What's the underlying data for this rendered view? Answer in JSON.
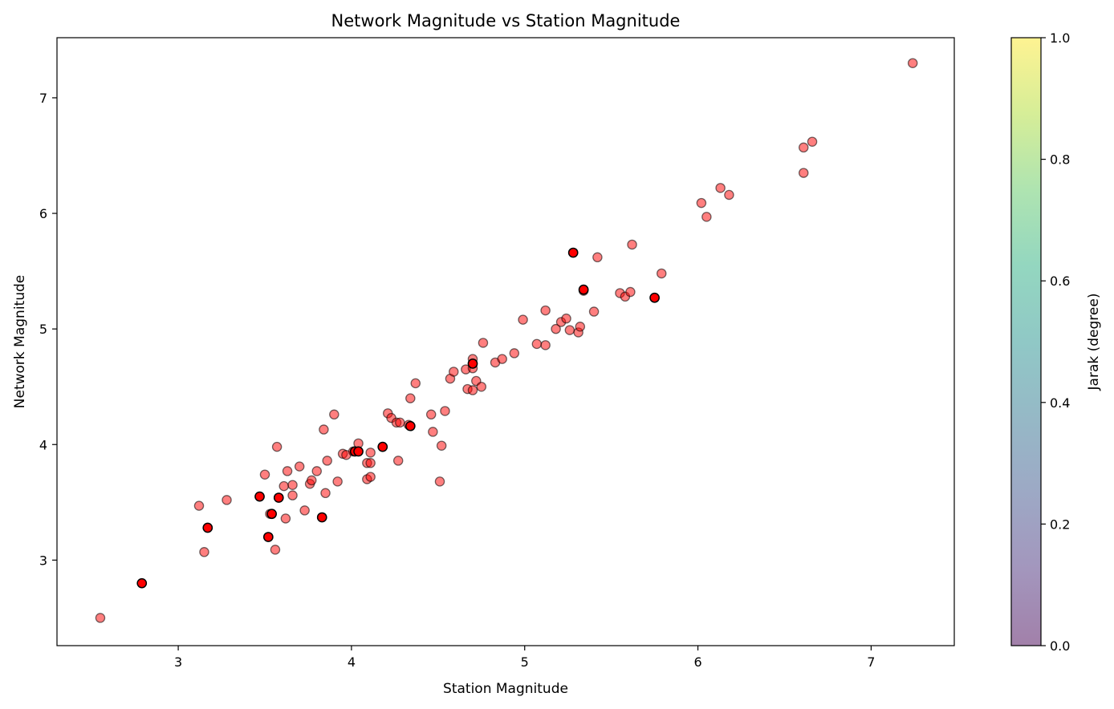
{
  "chart_data": {
    "type": "scatter",
    "title": "Network Magnitude vs Station Magnitude",
    "xlabel": "Station Magnitude",
    "ylabel": "Network Magnitude",
    "xlim": [
      2.3,
      7.48
    ],
    "ylim": [
      2.26,
      7.52
    ],
    "xticks": [
      3,
      4,
      5,
      6,
      7
    ],
    "yticks": [
      3,
      4,
      5,
      6,
      7
    ],
    "grid": false,
    "colors": {
      "point_fill": "#ff0000",
      "point_alpha": 0.5,
      "highlight_alpha": 1.0,
      "edge": "#000000"
    },
    "colorbar": {
      "label": "Jarak (degree)",
      "range": [
        0.0,
        1.0
      ],
      "ticks": [
        "0.0",
        "0.2",
        "0.4",
        "0.6",
        "0.8",
        "1.0"
      ],
      "colormap": "viridis",
      "alpha": 0.5
    },
    "points": [
      {
        "x": 2.55,
        "y": 2.5
      },
      {
        "x": 3.12,
        "y": 3.47
      },
      {
        "x": 3.15,
        "y": 3.07
      },
      {
        "x": 3.28,
        "y": 3.52
      },
      {
        "x": 3.5,
        "y": 3.74
      },
      {
        "x": 3.53,
        "y": 3.4
      },
      {
        "x": 3.56,
        "y": 3.09
      },
      {
        "x": 3.57,
        "y": 3.98
      },
      {
        "x": 3.61,
        "y": 3.64
      },
      {
        "x": 3.62,
        "y": 3.36
      },
      {
        "x": 3.63,
        "y": 3.77
      },
      {
        "x": 3.66,
        "y": 3.56
      },
      {
        "x": 3.66,
        "y": 3.65
      },
      {
        "x": 3.7,
        "y": 3.81
      },
      {
        "x": 3.73,
        "y": 3.43
      },
      {
        "x": 3.76,
        "y": 3.66
      },
      {
        "x": 3.77,
        "y": 3.69
      },
      {
        "x": 3.8,
        "y": 3.77
      },
      {
        "x": 3.84,
        "y": 4.13
      },
      {
        "x": 3.85,
        "y": 3.58
      },
      {
        "x": 3.86,
        "y": 3.86
      },
      {
        "x": 3.9,
        "y": 4.26
      },
      {
        "x": 3.92,
        "y": 3.68
      },
      {
        "x": 3.95,
        "y": 3.92
      },
      {
        "x": 3.97,
        "y": 3.91
      },
      {
        "x": 4.01,
        "y": 3.94
      },
      {
        "x": 4.04,
        "y": 4.01
      },
      {
        "x": 4.09,
        "y": 3.84
      },
      {
        "x": 4.09,
        "y": 3.7
      },
      {
        "x": 4.11,
        "y": 3.72
      },
      {
        "x": 4.11,
        "y": 3.84
      },
      {
        "x": 4.11,
        "y": 3.93
      },
      {
        "x": 4.21,
        "y": 4.27
      },
      {
        "x": 4.23,
        "y": 4.23
      },
      {
        "x": 4.26,
        "y": 4.19
      },
      {
        "x": 4.28,
        "y": 4.19
      },
      {
        "x": 4.27,
        "y": 3.86
      },
      {
        "x": 4.33,
        "y": 4.17
      },
      {
        "x": 4.34,
        "y": 4.4
      },
      {
        "x": 4.37,
        "y": 4.53
      },
      {
        "x": 4.46,
        "y": 4.26
      },
      {
        "x": 4.47,
        "y": 4.11
      },
      {
        "x": 4.51,
        "y": 3.68
      },
      {
        "x": 4.52,
        "y": 3.99
      },
      {
        "x": 4.54,
        "y": 4.29
      },
      {
        "x": 4.57,
        "y": 4.57
      },
      {
        "x": 4.59,
        "y": 4.63
      },
      {
        "x": 4.66,
        "y": 4.65
      },
      {
        "x": 4.67,
        "y": 4.48
      },
      {
        "x": 4.7,
        "y": 4.47
      },
      {
        "x": 4.7,
        "y": 4.74
      },
      {
        "x": 4.7,
        "y": 4.66
      },
      {
        "x": 4.72,
        "y": 4.55
      },
      {
        "x": 4.75,
        "y": 4.5
      },
      {
        "x": 4.76,
        "y": 4.88
      },
      {
        "x": 4.83,
        "y": 4.71
      },
      {
        "x": 4.87,
        "y": 4.74
      },
      {
        "x": 4.94,
        "y": 4.79
      },
      {
        "x": 4.99,
        "y": 5.08
      },
      {
        "x": 5.07,
        "y": 4.87
      },
      {
        "x": 5.12,
        "y": 4.86
      },
      {
        "x": 5.12,
        "y": 5.16
      },
      {
        "x": 5.18,
        "y": 5.0
      },
      {
        "x": 5.21,
        "y": 5.06
      },
      {
        "x": 5.24,
        "y": 5.09
      },
      {
        "x": 5.26,
        "y": 4.99
      },
      {
        "x": 5.31,
        "y": 4.97
      },
      {
        "x": 5.32,
        "y": 5.02
      },
      {
        "x": 5.34,
        "y": 5.33
      },
      {
        "x": 5.4,
        "y": 5.15
      },
      {
        "x": 5.42,
        "y": 5.62
      },
      {
        "x": 5.55,
        "y": 5.31
      },
      {
        "x": 5.58,
        "y": 5.28
      },
      {
        "x": 5.61,
        "y": 5.32
      },
      {
        "x": 5.62,
        "y": 5.73
      },
      {
        "x": 5.79,
        "y": 5.48
      },
      {
        "x": 6.02,
        "y": 6.09
      },
      {
        "x": 6.05,
        "y": 5.97
      },
      {
        "x": 6.13,
        "y": 6.22
      },
      {
        "x": 6.18,
        "y": 6.16
      },
      {
        "x": 6.61,
        "y": 6.35
      },
      {
        "x": 6.61,
        "y": 6.57
      },
      {
        "x": 6.66,
        "y": 6.62
      },
      {
        "x": 7.24,
        "y": 7.3
      }
    ],
    "highlighted_points": [
      {
        "x": 2.79,
        "y": 2.8
      },
      {
        "x": 3.17,
        "y": 3.28
      },
      {
        "x": 3.47,
        "y": 3.55
      },
      {
        "x": 3.52,
        "y": 3.2
      },
      {
        "x": 3.54,
        "y": 3.4
      },
      {
        "x": 3.58,
        "y": 3.54
      },
      {
        "x": 3.83,
        "y": 3.37
      },
      {
        "x": 4.02,
        "y": 3.94
      },
      {
        "x": 4.04,
        "y": 3.94
      },
      {
        "x": 4.18,
        "y": 3.98
      },
      {
        "x": 4.34,
        "y": 4.16
      },
      {
        "x": 4.7,
        "y": 4.7
      },
      {
        "x": 5.28,
        "y": 5.66
      },
      {
        "x": 5.34,
        "y": 5.34
      },
      {
        "x": 5.75,
        "y": 5.27
      }
    ]
  }
}
